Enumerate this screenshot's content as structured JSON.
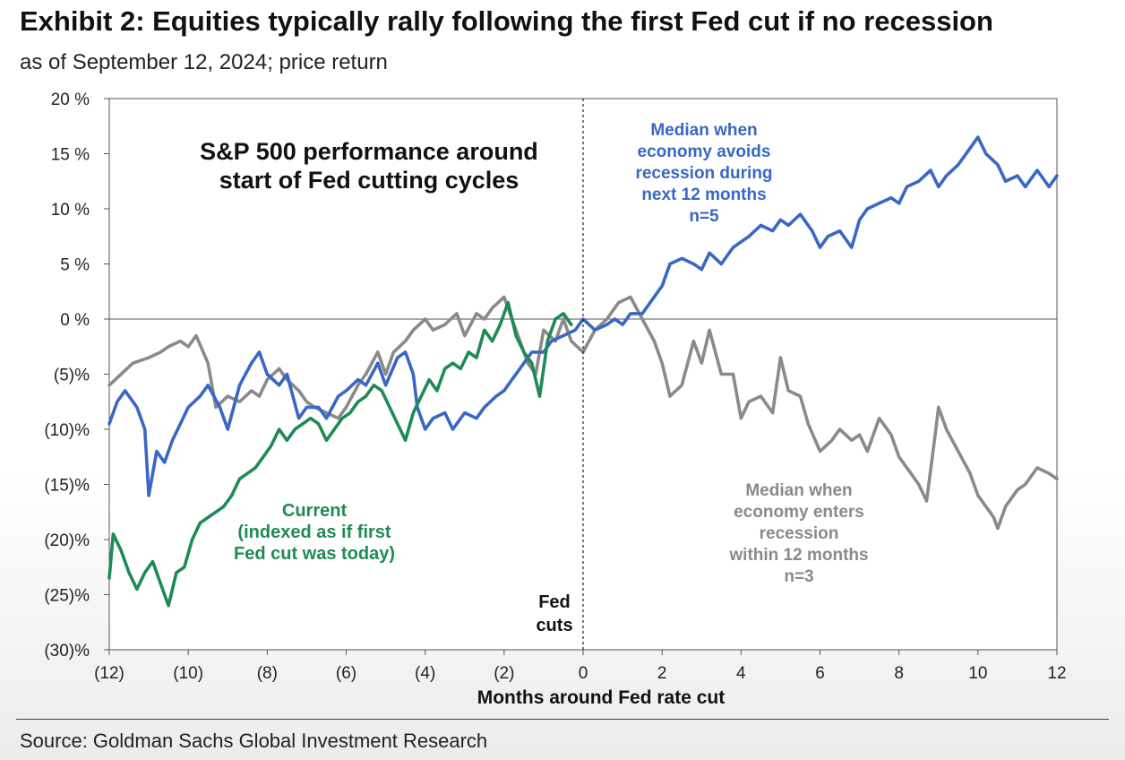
{
  "header": {
    "title": "Exhibit 2: Equities typically rally following the first Fed cut if no recession",
    "subtitle": "as of September 12, 2024; price return"
  },
  "footer": {
    "source": "Source: Goldman Sachs Global Investment Research"
  },
  "chart_data": {
    "type": "line",
    "title": "S&P 500 performance around start of Fed cutting cycles",
    "title_lines": [
      "S&P 500 performance around",
      "start of Fed cutting cycles"
    ],
    "xlabel": "Months around Fed rate cut",
    "ylabel": "",
    "xlim": [
      -12,
      12
    ],
    "ylim": [
      -30,
      20
    ],
    "grid": false,
    "x_ticks": [
      {
        "value": -12,
        "label": "(12)"
      },
      {
        "value": -10,
        "label": "(10)"
      },
      {
        "value": -8,
        "label": "(8)"
      },
      {
        "value": -6,
        "label": "(6)"
      },
      {
        "value": -4,
        "label": "(4)"
      },
      {
        "value": -2,
        "label": "(2)"
      },
      {
        "value": 0,
        "label": "0"
      },
      {
        "value": 2,
        "label": "2"
      },
      {
        "value": 4,
        "label": "4"
      },
      {
        "value": 6,
        "label": "6"
      },
      {
        "value": 8,
        "label": "8"
      },
      {
        "value": 10,
        "label": "10"
      },
      {
        "value": 12,
        "label": "12"
      }
    ],
    "y_ticks": [
      {
        "value": 20,
        "label": "20 %"
      },
      {
        "value": 15,
        "label": "15 %"
      },
      {
        "value": 10,
        "label": "10 %"
      },
      {
        "value": 5,
        "label": "5 %"
      },
      {
        "value": 0,
        "label": "0 %"
      },
      {
        "value": -5,
        "label": "(5)%"
      },
      {
        "value": -10,
        "label": "(10)%"
      },
      {
        "value": -15,
        "label": "(15)%"
      },
      {
        "value": -20,
        "label": "(20)%"
      },
      {
        "value": -25,
        "label": "(25)%"
      },
      {
        "value": -30,
        "label": "(30)%"
      }
    ],
    "vline": {
      "x": 0,
      "label_lines": [
        "Fed",
        "cuts"
      ]
    },
    "series": [
      {
        "key": "no_recession",
        "color": "#3a67c4",
        "label_lines": [
          "Median when",
          "economy avoids",
          "recession during",
          "next 12 months",
          "n=5"
        ],
        "points": [
          [
            -12,
            -9.5
          ],
          [
            -11.8,
            -7.5
          ],
          [
            -11.6,
            -6.5
          ],
          [
            -11.3,
            -8
          ],
          [
            -11.1,
            -10
          ],
          [
            -11,
            -16
          ],
          [
            -10.8,
            -12
          ],
          [
            -10.6,
            -13
          ],
          [
            -10.4,
            -11
          ],
          [
            -10.2,
            -9.5
          ],
          [
            -10,
            -8
          ],
          [
            -9.7,
            -7
          ],
          [
            -9.5,
            -6
          ],
          [
            -9.2,
            -8
          ],
          [
            -9,
            -10
          ],
          [
            -8.7,
            -6
          ],
          [
            -8.4,
            -4
          ],
          [
            -8.2,
            -3
          ],
          [
            -8,
            -5
          ],
          [
            -7.7,
            -6
          ],
          [
            -7.5,
            -5
          ],
          [
            -7.2,
            -9
          ],
          [
            -7,
            -8
          ],
          [
            -6.7,
            -8
          ],
          [
            -6.5,
            -9
          ],
          [
            -6.2,
            -7
          ],
          [
            -6,
            -6.5
          ],
          [
            -5.7,
            -5.5
          ],
          [
            -5.5,
            -6
          ],
          [
            -5.2,
            -4
          ],
          [
            -5,
            -6
          ],
          [
            -4.7,
            -3.5
          ],
          [
            -4.5,
            -3
          ],
          [
            -4.3,
            -5
          ],
          [
            -4.2,
            -8
          ],
          [
            -4,
            -10
          ],
          [
            -3.8,
            -9
          ],
          [
            -3.5,
            -8.5
          ],
          [
            -3.3,
            -10
          ],
          [
            -3,
            -8.5
          ],
          [
            -2.7,
            -9
          ],
          [
            -2.5,
            -8
          ],
          [
            -2.2,
            -7
          ],
          [
            -2,
            -6.5
          ],
          [
            -1.8,
            -5.5
          ],
          [
            -1.5,
            -4
          ],
          [
            -1.3,
            -3
          ],
          [
            -1,
            -3
          ],
          [
            -0.8,
            -2
          ],
          [
            -0.5,
            -1.5
          ],
          [
            -0.2,
            -1
          ],
          [
            0,
            0
          ],
          [
            0.3,
            -1
          ],
          [
            0.6,
            -0.5
          ],
          [
            0.8,
            0
          ],
          [
            1,
            -0.5
          ],
          [
            1.2,
            0.5
          ],
          [
            1.5,
            0.5
          ],
          [
            1.7,
            1.5
          ],
          [
            2,
            3
          ],
          [
            2.2,
            5
          ],
          [
            2.5,
            5.5
          ],
          [
            2.8,
            5
          ],
          [
            3,
            4.5
          ],
          [
            3.2,
            6
          ],
          [
            3.5,
            5
          ],
          [
            3.8,
            6.5
          ],
          [
            4,
            7
          ],
          [
            4.2,
            7.5
          ],
          [
            4.5,
            8.5
          ],
          [
            4.8,
            8
          ],
          [
            5,
            9
          ],
          [
            5.2,
            8.5
          ],
          [
            5.5,
            9.5
          ],
          [
            5.8,
            8
          ],
          [
            6,
            6.5
          ],
          [
            6.2,
            7.5
          ],
          [
            6.5,
            8
          ],
          [
            6.8,
            6.5
          ],
          [
            7,
            9
          ],
          [
            7.2,
            10
          ],
          [
            7.5,
            10.5
          ],
          [
            7.8,
            11
          ],
          [
            8,
            10.5
          ],
          [
            8.2,
            12
          ],
          [
            8.5,
            12.5
          ],
          [
            8.8,
            13.5
          ],
          [
            9,
            12
          ],
          [
            9.2,
            13
          ],
          [
            9.5,
            14
          ],
          [
            9.8,
            15.5
          ],
          [
            10,
            16.5
          ],
          [
            10.2,
            15
          ],
          [
            10.5,
            14
          ],
          [
            10.7,
            12.5
          ],
          [
            11,
            13
          ],
          [
            11.2,
            12
          ],
          [
            11.5,
            13.5
          ],
          [
            11.8,
            12
          ],
          [
            12,
            13
          ]
        ]
      },
      {
        "key": "recession",
        "color": "#8a8a8a",
        "label_lines": [
          "Median when",
          "economy enters",
          "recession",
          "within 12 months",
          "n=3"
        ],
        "points": [
          [
            -12,
            -6
          ],
          [
            -11.7,
            -5
          ],
          [
            -11.4,
            -4
          ],
          [
            -11,
            -3.5
          ],
          [
            -10.7,
            -3
          ],
          [
            -10.5,
            -2.5
          ],
          [
            -10.2,
            -2
          ],
          [
            -10,
            -2.5
          ],
          [
            -9.8,
            -1.5
          ],
          [
            -9.5,
            -4
          ],
          [
            -9.3,
            -8
          ],
          [
            -9,
            -7
          ],
          [
            -8.7,
            -7.5
          ],
          [
            -8.4,
            -6.5
          ],
          [
            -8.2,
            -7
          ],
          [
            -8,
            -5.5
          ],
          [
            -7.7,
            -4.5
          ],
          [
            -7.5,
            -5.5
          ],
          [
            -7.2,
            -6.5
          ],
          [
            -7,
            -7.5
          ],
          [
            -6.8,
            -8
          ],
          [
            -6.5,
            -8.5
          ],
          [
            -6.2,
            -9
          ],
          [
            -6,
            -8
          ],
          [
            -5.7,
            -6
          ],
          [
            -5.5,
            -5
          ],
          [
            -5.2,
            -3
          ],
          [
            -5,
            -5
          ],
          [
            -4.8,
            -3
          ],
          [
            -4.5,
            -2
          ],
          [
            -4.3,
            -1
          ],
          [
            -4,
            0
          ],
          [
            -3.8,
            -1
          ],
          [
            -3.5,
            -0.5
          ],
          [
            -3.2,
            0.5
          ],
          [
            -3,
            -1.5
          ],
          [
            -2.7,
            0.5
          ],
          [
            -2.5,
            0
          ],
          [
            -2.3,
            1
          ],
          [
            -2,
            2
          ],
          [
            -1.8,
            0
          ],
          [
            -1.6,
            -2
          ],
          [
            -1.4,
            -4
          ],
          [
            -1.2,
            -5
          ],
          [
            -1,
            -1
          ],
          [
            -0.7,
            -2
          ],
          [
            -0.5,
            0
          ],
          [
            -0.3,
            -2
          ],
          [
            0,
            -3
          ],
          [
            0.3,
            -1
          ],
          [
            0.6,
            0
          ],
          [
            0.9,
            1.5
          ],
          [
            1.2,
            2
          ],
          [
            1.5,
            0
          ],
          [
            1.8,
            -2
          ],
          [
            2,
            -4
          ],
          [
            2.2,
            -7
          ],
          [
            2.5,
            -6
          ],
          [
            2.8,
            -2
          ],
          [
            3,
            -4
          ],
          [
            3.2,
            -1
          ],
          [
            3.5,
            -5
          ],
          [
            3.8,
            -5
          ],
          [
            4,
            -9
          ],
          [
            4.2,
            -7.5
          ],
          [
            4.5,
            -7
          ],
          [
            4.8,
            -8.5
          ],
          [
            5,
            -3.5
          ],
          [
            5.2,
            -6.5
          ],
          [
            5.5,
            -7
          ],
          [
            5.7,
            -9.5
          ],
          [
            6,
            -12
          ],
          [
            6.3,
            -11
          ],
          [
            6.5,
            -10
          ],
          [
            6.8,
            -11
          ],
          [
            7,
            -10.5
          ],
          [
            7.2,
            -12
          ],
          [
            7.5,
            -9
          ],
          [
            7.8,
            -10.5
          ],
          [
            8,
            -12.5
          ],
          [
            8.2,
            -13.5
          ],
          [
            8.5,
            -15
          ],
          [
            8.7,
            -16.5
          ],
          [
            8.9,
            -11
          ],
          [
            9,
            -8
          ],
          [
            9.2,
            -10
          ],
          [
            9.5,
            -12
          ],
          [
            9.8,
            -14
          ],
          [
            10,
            -16
          ],
          [
            10.2,
            -17
          ],
          [
            10.4,
            -18
          ],
          [
            10.5,
            -19
          ],
          [
            10.7,
            -17
          ],
          [
            11,
            -15.5
          ],
          [
            11.2,
            -15
          ],
          [
            11.5,
            -13.5
          ],
          [
            11.8,
            -14
          ],
          [
            12,
            -14.5
          ]
        ]
      },
      {
        "key": "current",
        "color": "#1e8a55",
        "label_lines": [
          "Current",
          "(indexed as if first",
          "Fed cut was today)"
        ],
        "points": [
          [
            -12,
            -23.5
          ],
          [
            -11.9,
            -19.5
          ],
          [
            -11.7,
            -21
          ],
          [
            -11.5,
            -23
          ],
          [
            -11.3,
            -24.5
          ],
          [
            -11.1,
            -23
          ],
          [
            -10.9,
            -22
          ],
          [
            -10.7,
            -24
          ],
          [
            -10.5,
            -26
          ],
          [
            -10.3,
            -23
          ],
          [
            -10.1,
            -22.5
          ],
          [
            -9.9,
            -20
          ],
          [
            -9.7,
            -18.5
          ],
          [
            -9.5,
            -18
          ],
          [
            -9.3,
            -17.5
          ],
          [
            -9.1,
            -17
          ],
          [
            -8.9,
            -16
          ],
          [
            -8.7,
            -14.5
          ],
          [
            -8.5,
            -14
          ],
          [
            -8.3,
            -13.5
          ],
          [
            -8.1,
            -12.5
          ],
          [
            -7.9,
            -11.5
          ],
          [
            -7.7,
            -10
          ],
          [
            -7.5,
            -11
          ],
          [
            -7.3,
            -10
          ],
          [
            -7.1,
            -9.5
          ],
          [
            -6.9,
            -9
          ],
          [
            -6.7,
            -9.5
          ],
          [
            -6.5,
            -11
          ],
          [
            -6.3,
            -10
          ],
          [
            -6.1,
            -9
          ],
          [
            -5.9,
            -8.5
          ],
          [
            -5.7,
            -7.5
          ],
          [
            -5.5,
            -7
          ],
          [
            -5.3,
            -6
          ],
          [
            -5.1,
            -6.5
          ],
          [
            -4.9,
            -8
          ],
          [
            -4.7,
            -9.5
          ],
          [
            -4.5,
            -11
          ],
          [
            -4.3,
            -8.5
          ],
          [
            -4.1,
            -7
          ],
          [
            -3.9,
            -5.5
          ],
          [
            -3.7,
            -6.5
          ],
          [
            -3.5,
            -4.5
          ],
          [
            -3.3,
            -4
          ],
          [
            -3.1,
            -4.5
          ],
          [
            -2.9,
            -3
          ],
          [
            -2.7,
            -3.5
          ],
          [
            -2.5,
            -1
          ],
          [
            -2.3,
            -2
          ],
          [
            -2.1,
            -0.5
          ],
          [
            -1.9,
            1.5
          ],
          [
            -1.7,
            -1.5
          ],
          [
            -1.5,
            -3
          ],
          [
            -1.3,
            -4
          ],
          [
            -1.1,
            -7
          ],
          [
            -0.9,
            -2
          ],
          [
            -0.7,
            0
          ],
          [
            -0.5,
            0.5
          ],
          [
            -0.3,
            -0.5
          ]
        ]
      }
    ]
  }
}
